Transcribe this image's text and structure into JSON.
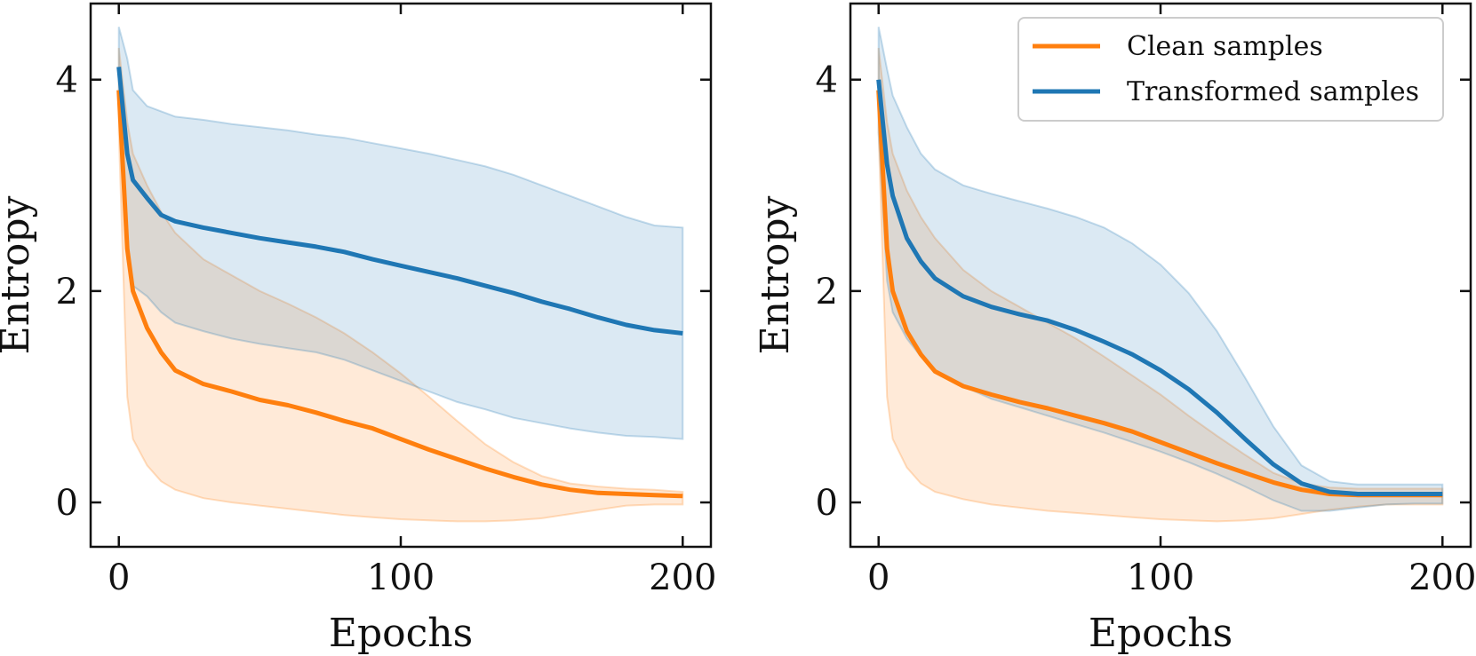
{
  "colors": {
    "clean": "#ff7f0e",
    "transformed": "#1f77b4"
  },
  "legend": {
    "placement": "top-right of right panel",
    "entries": [
      {
        "label": "Clean samples",
        "color": "#ff7f0e"
      },
      {
        "label": "Transformed samples",
        "color": "#1f77b4"
      }
    ]
  },
  "chart_data": [
    {
      "type": "line",
      "title": "",
      "xlabel": "Epochs",
      "ylabel": "Entropy",
      "xlim": [
        -10,
        210
      ],
      "ylim": [
        -0.42,
        4.72
      ],
      "xticks": [
        0,
        100,
        200
      ],
      "yticks": [
        0,
        2,
        4
      ],
      "grid": false,
      "legend": false,
      "x": [
        0,
        3,
        5,
        10,
        15,
        20,
        30,
        40,
        50,
        60,
        70,
        80,
        90,
        100,
        110,
        120,
        130,
        140,
        150,
        160,
        170,
        180,
        190,
        200
      ],
      "series": [
        {
          "name": "Clean samples",
          "mean": [
            3.9,
            2.4,
            2.0,
            1.65,
            1.42,
            1.25,
            1.12,
            1.05,
            0.97,
            0.92,
            0.85,
            0.77,
            0.7,
            0.6,
            0.5,
            0.41,
            0.32,
            0.24,
            0.17,
            0.12,
            0.09,
            0.08,
            0.07,
            0.06
          ],
          "upper": [
            4.3,
            3.6,
            3.3,
            3.0,
            2.75,
            2.55,
            2.3,
            2.15,
            2.0,
            1.88,
            1.75,
            1.6,
            1.42,
            1.22,
            1.0,
            0.77,
            0.55,
            0.38,
            0.25,
            0.18,
            0.15,
            0.13,
            0.12,
            0.1
          ],
          "lower": [
            3.5,
            1.0,
            0.6,
            0.35,
            0.2,
            0.12,
            0.04,
            0.0,
            -0.03,
            -0.06,
            -0.09,
            -0.12,
            -0.14,
            -0.16,
            -0.17,
            -0.18,
            -0.18,
            -0.17,
            -0.15,
            -0.11,
            -0.07,
            -0.03,
            -0.02,
            -0.02
          ]
        },
        {
          "name": "Transformed samples",
          "mean": [
            4.12,
            3.3,
            3.05,
            2.88,
            2.72,
            2.66,
            2.6,
            2.55,
            2.5,
            2.46,
            2.42,
            2.37,
            2.3,
            2.24,
            2.18,
            2.12,
            2.05,
            1.98,
            1.9,
            1.83,
            1.75,
            1.68,
            1.63,
            1.6
          ],
          "upper": [
            4.5,
            4.2,
            3.9,
            3.75,
            3.7,
            3.65,
            3.62,
            3.58,
            3.55,
            3.52,
            3.48,
            3.45,
            3.4,
            3.35,
            3.3,
            3.24,
            3.18,
            3.1,
            3.0,
            2.9,
            2.8,
            2.7,
            2.62,
            2.6
          ],
          "lower": [
            3.7,
            2.3,
            2.05,
            1.95,
            1.8,
            1.7,
            1.62,
            1.55,
            1.5,
            1.46,
            1.42,
            1.35,
            1.25,
            1.15,
            1.05,
            0.95,
            0.88,
            0.8,
            0.75,
            0.7,
            0.66,
            0.63,
            0.62,
            0.6
          ]
        }
      ]
    },
    {
      "type": "line",
      "title": "",
      "xlabel": "Epochs",
      "ylabel": "Entropy",
      "xlim": [
        -10,
        210
      ],
      "ylim": [
        -0.42,
        4.72
      ],
      "xticks": [
        0,
        100,
        200
      ],
      "yticks": [
        0,
        2,
        4
      ],
      "grid": false,
      "legend": true,
      "x": [
        0,
        3,
        5,
        10,
        15,
        20,
        30,
        40,
        50,
        60,
        70,
        80,
        90,
        100,
        110,
        120,
        130,
        140,
        150,
        160,
        170,
        180,
        190,
        200
      ],
      "series": [
        {
          "name": "Clean samples",
          "mean": [
            3.9,
            2.4,
            2.0,
            1.62,
            1.4,
            1.24,
            1.1,
            1.02,
            0.95,
            0.89,
            0.82,
            0.75,
            0.67,
            0.57,
            0.47,
            0.37,
            0.28,
            0.19,
            0.12,
            0.08,
            0.07,
            0.07,
            0.07,
            0.07
          ],
          "upper": [
            4.3,
            3.6,
            3.3,
            2.95,
            2.7,
            2.5,
            2.2,
            2.0,
            1.85,
            1.7,
            1.55,
            1.38,
            1.2,
            1.02,
            0.82,
            0.63,
            0.45,
            0.28,
            0.18,
            0.14,
            0.13,
            0.13,
            0.13,
            0.13
          ],
          "lower": [
            3.5,
            1.0,
            0.6,
            0.33,
            0.18,
            0.1,
            0.03,
            -0.02,
            -0.05,
            -0.08,
            -0.1,
            -0.12,
            -0.14,
            -0.16,
            -0.17,
            -0.18,
            -0.17,
            -0.15,
            -0.11,
            -0.07,
            -0.04,
            -0.02,
            -0.02,
            -0.02
          ]
        },
        {
          "name": "Transformed samples",
          "mean": [
            4.0,
            3.2,
            2.9,
            2.5,
            2.28,
            2.12,
            1.95,
            1.85,
            1.78,
            1.72,
            1.63,
            1.52,
            1.4,
            1.25,
            1.07,
            0.85,
            0.6,
            0.36,
            0.18,
            0.1,
            0.08,
            0.08,
            0.08,
            0.08
          ],
          "upper": [
            4.5,
            4.1,
            3.85,
            3.55,
            3.3,
            3.15,
            3.0,
            2.92,
            2.85,
            2.78,
            2.7,
            2.6,
            2.45,
            2.25,
            1.98,
            1.62,
            1.18,
            0.72,
            0.35,
            0.2,
            0.17,
            0.17,
            0.17,
            0.17
          ],
          "lower": [
            3.5,
            2.1,
            1.8,
            1.55,
            1.38,
            1.25,
            1.1,
            0.98,
            0.9,
            0.82,
            0.74,
            0.66,
            0.57,
            0.48,
            0.38,
            0.27,
            0.15,
            0.02,
            -0.08,
            -0.08,
            -0.05,
            -0.02,
            -0.01,
            -0.01
          ]
        }
      ]
    }
  ]
}
